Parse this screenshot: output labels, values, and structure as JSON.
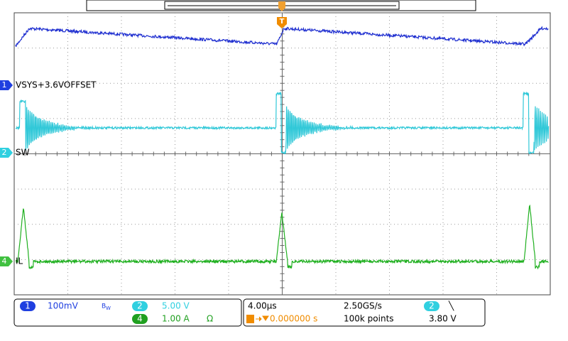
{
  "trigger_marker": "T",
  "channels": [
    {
      "number": "1",
      "label": "VSYS+3.6VOFFSET"
    },
    {
      "number": "2",
      "label": "SW"
    },
    {
      "number": "4",
      "label": "IL"
    }
  ],
  "status": {
    "ch1": {
      "number": "1",
      "scale": "100mV",
      "bw": "B",
      "bw_sub": "W"
    },
    "ch2": {
      "number": "2",
      "scale": "5.00 V"
    },
    "ch4": {
      "number": "4",
      "scale": "1.00 A",
      "termination": "Ω"
    },
    "timebase": "4.00µs",
    "sample_rate": "2.50GS/s",
    "trigger_position": "0.000000 s",
    "record_length": "100k points",
    "trigger_source": "2",
    "trigger_slope": "╲",
    "trigger_level": "3.80 V"
  }
}
